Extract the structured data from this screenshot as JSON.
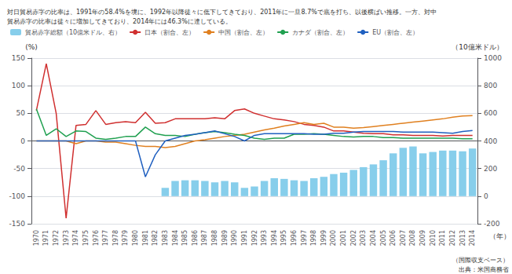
{
  "chart_data": {
    "type": "bar",
    "title": "対日貿易赤字の比率は、1991年の58.4%を境に、1992年以降徒々に低下してきており、2011年に一旦8.7%で底を打ち、以後横ばい推移。一方、対中",
    "subtitle": "貿易赤字の比率は徒々に増加してきており、2014年には46.3%に達している。",
    "xlabel": "（年）",
    "ylabel": "(%)",
    "y2label": "（10億米ドル）",
    "annotations": [
      "（国際収支ベース）",
      "出典：米国商務省"
    ],
    "categories": [
      "1970",
      "1971",
      "1972",
      "1973",
      "1974",
      "1975",
      "1976",
      "1977",
      "1978",
      "1979",
      "1980",
      "1981",
      "1982",
      "1983",
      "1984",
      "1985",
      "1986",
      "1987",
      "1988",
      "1989",
      "1990",
      "1991",
      "1992",
      "1993",
      "1994",
      "1995",
      "1996",
      "1997",
      "1998",
      "1999",
      "2000",
      "2001",
      "2002",
      "2003",
      "2004",
      "2005",
      "2006",
      "2007",
      "2008",
      "2009",
      "2010",
      "2011",
      "2012",
      "2013",
      "2014"
    ],
    "series": [
      {
        "name": "貿易赤字総額（10億米ドル、右）",
        "type": "bar",
        "axis": "y2",
        "color": "#87CEEB",
        "values": [
          0,
          0,
          0,
          0,
          0,
          0,
          0,
          0,
          0,
          0,
          0,
          0,
          0,
          60,
          110,
          115,
          115,
          110,
          100,
          110,
          100,
          60,
          70,
          110,
          130,
          125,
          115,
          110,
          130,
          140,
          160,
          170,
          190,
          210,
          230,
          260,
          310,
          350,
          360,
          310,
          320,
          330,
          330,
          325,
          345
        ]
      },
      {
        "name": "日本（割合、左）",
        "type": "line",
        "color": "#d03030",
        "values": [
          55,
          140,
          50,
          -140,
          28,
          30,
          55,
          30,
          33,
          35,
          33,
          52,
          32,
          33,
          40,
          40,
          40,
          40,
          42,
          40,
          55,
          58,
          50,
          45,
          40,
          38,
          35,
          30,
          28,
          25,
          18,
          18,
          16,
          14,
          13,
          13,
          11,
          11,
          10,
          10,
          10,
          9,
          10,
          10,
          10
        ]
      },
      {
        "name": "中国（割合、左）",
        "type": "line",
        "color": "#e08020",
        "values": [
          0,
          0,
          0,
          0,
          -5,
          0,
          0,
          -2,
          -2,
          -5,
          -8,
          -10,
          -10,
          -12,
          -10,
          -5,
          0,
          2,
          5,
          8,
          10,
          12,
          16,
          20,
          23,
          27,
          30,
          33,
          30,
          32,
          25,
          25,
          23,
          24,
          26,
          28,
          30,
          32,
          34,
          36,
          38,
          40,
          43,
          45,
          46
        ]
      },
      {
        "name": "カナダ（割合、左）",
        "type": "line",
        "color": "#20a050",
        "values": [
          58,
          10,
          22,
          8,
          18,
          17,
          5,
          3,
          5,
          8,
          8,
          25,
          13,
          10,
          10,
          8,
          12,
          15,
          17,
          15,
          12,
          10,
          5,
          3,
          5,
          5,
          12,
          12,
          13,
          12,
          10,
          8,
          7,
          8,
          8,
          6,
          6,
          5,
          5,
          5,
          5,
          5,
          5,
          4,
          4
        ]
      },
      {
        "name": "EU（割合、左）",
        "type": "line",
        "color": "#2060c0",
        "values": [
          0,
          0,
          0,
          0,
          0,
          0,
          0,
          0,
          0,
          0,
          0,
          -65,
          -25,
          0,
          5,
          10,
          12,
          15,
          18,
          13,
          8,
          0,
          10,
          13,
          13,
          13,
          13,
          13,
          12,
          12,
          14,
          14,
          16,
          17,
          17,
          17,
          17,
          16,
          16,
          16,
          16,
          15,
          14,
          17,
          19
        ]
      }
    ],
    "ylim": [
      -150,
      150
    ],
    "yticks": [
      -150,
      -100,
      -50,
      0,
      50,
      100,
      150
    ],
    "y2lim": [
      -200,
      1000
    ],
    "y2ticks": [
      -200,
      0,
      200,
      400,
      600,
      800,
      1000
    ],
    "grid": true,
    "legend": "upper left"
  }
}
